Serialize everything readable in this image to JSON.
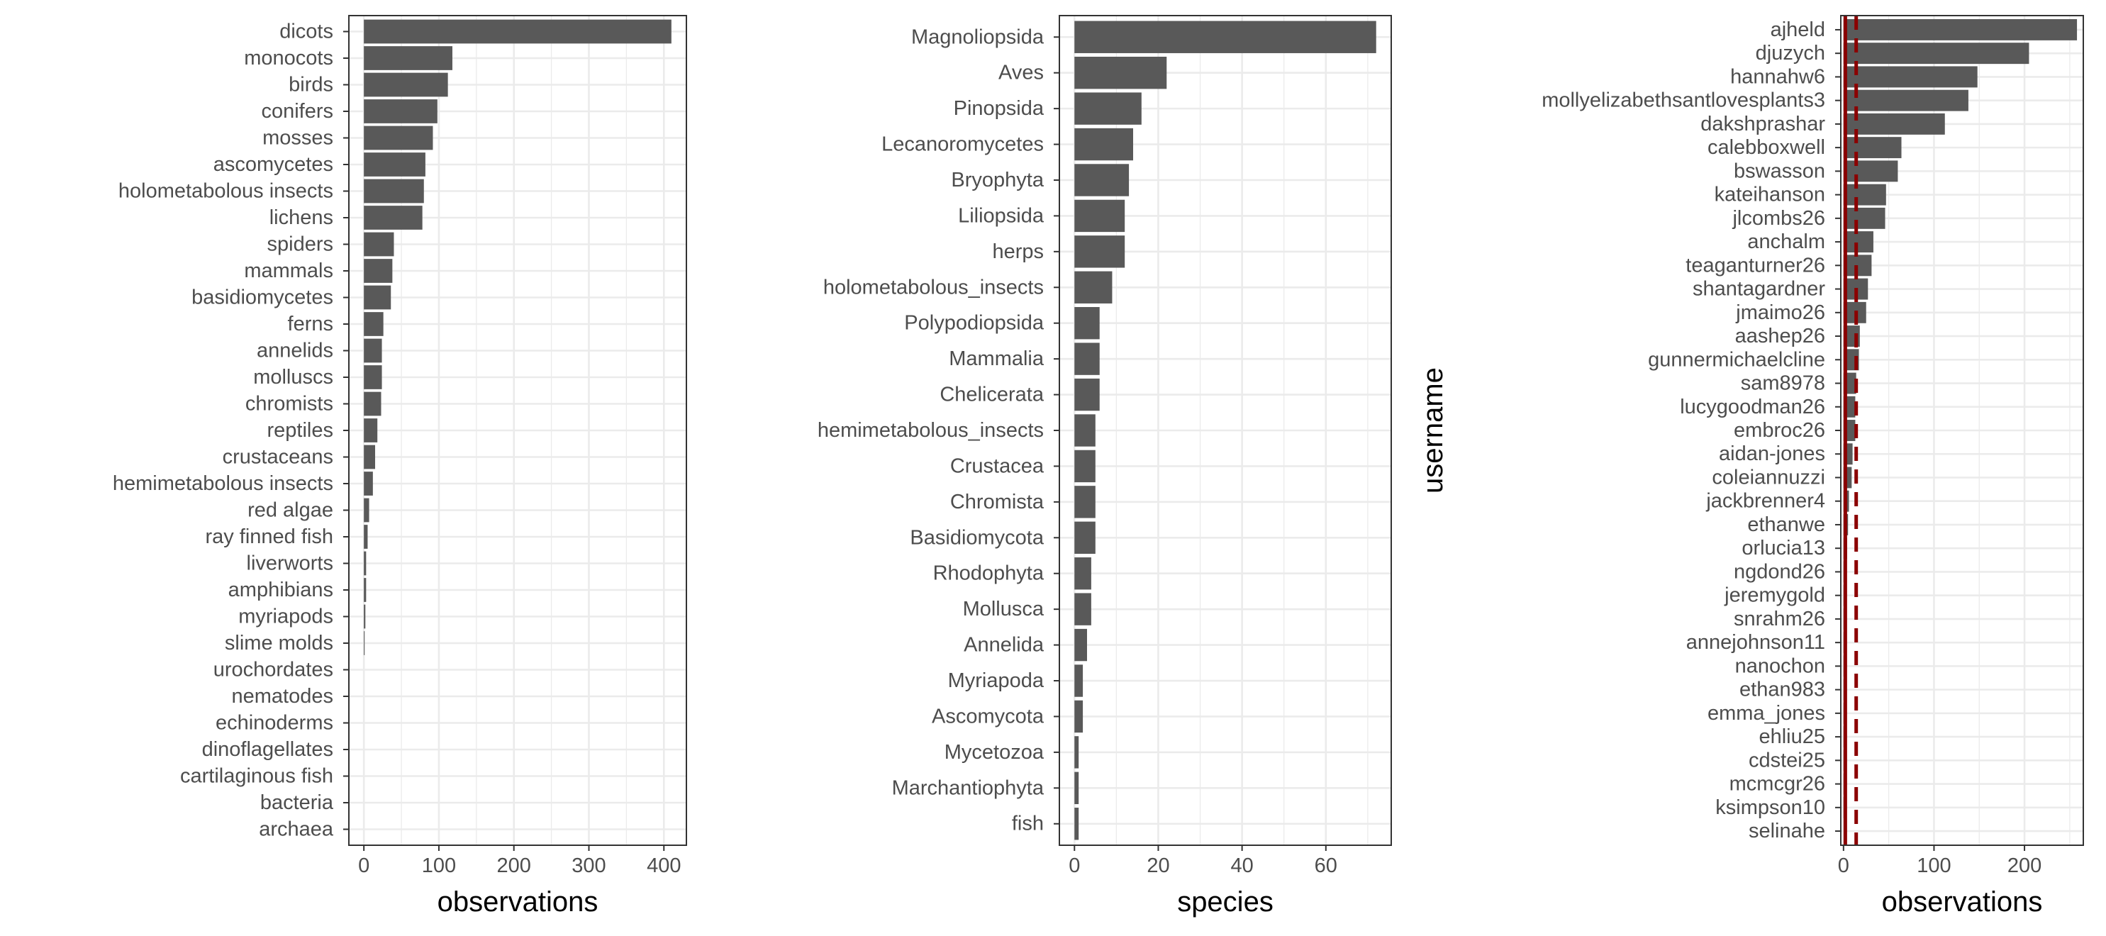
{
  "chart_data": [
    {
      "type": "bar",
      "orientation": "horizontal",
      "title": "",
      "xlabel": "observations",
      "ylabel": "",
      "xlim": [
        -20,
        430
      ],
      "xticks": [
        0,
        100,
        200,
        300,
        400
      ],
      "grid": true,
      "bar_color": "#595959",
      "categories": [
        "dicots",
        "monocots",
        "birds",
        "conifers",
        "mosses",
        "ascomycetes",
        "holometabolous insects",
        "lichens",
        "spiders",
        "mammals",
        "basidiomycetes",
        "ferns",
        "annelids",
        "molluscs",
        "chromists",
        "reptiles",
        "crustaceans",
        "hemimetabolous insects",
        "red algae",
        "ray finned fish",
        "liverworts",
        "amphibians",
        "myriapods",
        "slime molds",
        "urochordates",
        "nematodes",
        "echinoderms",
        "dinoflagellates",
        "cartilaginous fish",
        "bacteria",
        "archaea"
      ],
      "values": [
        410,
        118,
        112,
        98,
        92,
        82,
        80,
        78,
        40,
        38,
        36,
        26,
        24,
        24,
        23,
        18,
        15,
        12,
        7,
        5,
        3,
        3,
        2,
        1,
        0,
        0,
        0,
        0,
        0,
        0,
        0
      ]
    },
    {
      "type": "bar",
      "orientation": "horizontal",
      "title": "",
      "xlabel": "species",
      "ylabel": "",
      "xlim": [
        -3.6,
        75.6
      ],
      "xticks": [
        0,
        20,
        40,
        60
      ],
      "grid": true,
      "bar_color": "#595959",
      "categories": [
        "Magnoliopsida",
        "Aves",
        "Pinopsida",
        "Lecanoromycetes",
        "Bryophyta",
        "Liliopsida",
        "herps",
        "holometabolous_insects",
        "Polypodiopsida",
        "Mammalia",
        "Chelicerata",
        "hemimetabolous_insects",
        "Crustacea",
        "Chromista",
        "Basidiomycota",
        "Rhodophyta",
        "Mollusca",
        "Annelida",
        "Myriapoda",
        "Ascomycota",
        "Mycetozoa",
        "Marchantiophyta",
        "fish"
      ],
      "values": [
        72,
        22,
        16,
        14,
        13,
        12,
        12,
        9,
        6,
        6,
        6,
        5,
        5,
        5,
        5,
        4,
        4,
        3,
        2,
        2,
        1,
        1,
        1
      ]
    },
    {
      "type": "bar",
      "orientation": "horizontal",
      "title": "",
      "xlabel": "observations",
      "ylabel": "username",
      "xlim": [
        -3,
        265
      ],
      "xticks": [
        0,
        100,
        200
      ],
      "grid": true,
      "bar_color": "#595959",
      "reference_lines": [
        {
          "value": 2,
          "style": "solid",
          "color": "#8b0000"
        },
        {
          "value": 14,
          "style": "dashed",
          "color": "#8b0000"
        }
      ],
      "categories": [
        "ajheld",
        "djuzych",
        "hannahw6",
        "mollyelizabethsantlovesplants3",
        "dakshprashar",
        "calebboxwell",
        "bswasson",
        "kateihanson",
        "jlcombs26",
        "anchalm",
        "teaganturner26",
        "shantagardner",
        "jmaimo26",
        "aashep26",
        "gunnermichaelcline",
        "sam8978",
        "lucygoodman26",
        "embroc26",
        "aidan-jones",
        "coleiannuzzi",
        "jackbrenner4",
        "ethanwe",
        "orlucia13",
        "ngdond26",
        "jeremygold",
        "snrahm26",
        "annejohnson11",
        "nanochon",
        "ethan983",
        "emma_jones",
        "ehliu25",
        "cdstei25",
        "mcmcgr26",
        "ksimpson10",
        "selinahe"
      ],
      "values": [
        258,
        205,
        148,
        138,
        112,
        64,
        60,
        47,
        46,
        33,
        31,
        27,
        25,
        18,
        17,
        14,
        13,
        13,
        10,
        9,
        6,
        5,
        4,
        3,
        3,
        3,
        2,
        2,
        2,
        2,
        1,
        1,
        1,
        1,
        0
      ]
    }
  ]
}
